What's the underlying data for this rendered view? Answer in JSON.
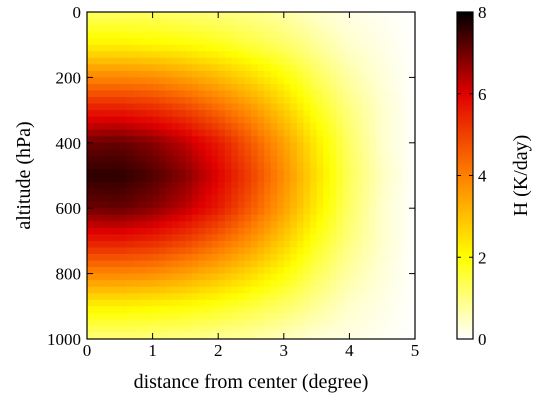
{
  "chart_data": {
    "type": "heatmap",
    "title": "",
    "xlabel": "distance from center (degree)",
    "ylabel": "altitude (hPa)",
    "xlim": [
      0,
      5
    ],
    "ylim": [
      1000,
      0
    ],
    "y_inverted": true,
    "xticks": [
      "0",
      "1",
      "2",
      "3",
      "4",
      "5"
    ],
    "yticks": [
      "0",
      "200",
      "400",
      "600",
      "800",
      "1000"
    ],
    "colorbar": {
      "label": "H (K/day)",
      "range": [
        0,
        8
      ],
      "ticks": [
        "0",
        "2",
        "4",
        "6",
        "8"
      ],
      "colormap": "hot_r",
      "colors": [
        "#ffffff",
        "#ffff00",
        "#ff8000",
        "#e00000",
        "#000000"
      ]
    },
    "field": {
      "x_distance": [
        0,
        0.5,
        1,
        1.5,
        2,
        2.5,
        3,
        3.5,
        4,
        4.5,
        5
      ],
      "y_altitude": [
        0,
        100,
        200,
        300,
        400,
        500,
        600,
        700,
        800,
        900,
        1000
      ],
      "values": [
        [
          1.2,
          1.2,
          1.2,
          1.1,
          1.0,
          0.9,
          0.7,
          0.4,
          0.2,
          0.1,
          0.0
        ],
        [
          2.2,
          2.2,
          2.1,
          2.0,
          1.8,
          1.5,
          1.2,
          0.8,
          0.4,
          0.2,
          0.0
        ],
        [
          3.9,
          3.9,
          3.8,
          3.5,
          3.1,
          2.6,
          2.0,
          1.3,
          0.7,
          0.3,
          0.0
        ],
        [
          5.6,
          5.6,
          5.4,
          5.0,
          4.4,
          3.7,
          2.8,
          1.8,
          1.0,
          0.4,
          0.0
        ],
        [
          7.0,
          7.1,
          6.8,
          6.3,
          5.6,
          4.6,
          3.5,
          2.3,
          1.2,
          0.4,
          0.0
        ],
        [
          7.6,
          7.6,
          7.3,
          6.8,
          6.0,
          5.0,
          3.8,
          2.5,
          1.3,
          0.5,
          0.0
        ],
        [
          7.0,
          7.1,
          6.8,
          6.3,
          5.6,
          4.6,
          3.5,
          2.3,
          1.2,
          0.4,
          0.0
        ],
        [
          5.6,
          5.6,
          5.4,
          5.0,
          4.4,
          3.7,
          2.8,
          1.8,
          1.0,
          0.4,
          0.0
        ],
        [
          3.9,
          3.9,
          3.8,
          3.5,
          3.1,
          2.6,
          2.0,
          1.3,
          0.7,
          0.3,
          0.0
        ],
        [
          2.2,
          2.2,
          2.1,
          2.0,
          1.8,
          1.5,
          1.2,
          0.8,
          0.4,
          0.2,
          0.0
        ],
        [
          1.0,
          1.0,
          1.0,
          0.9,
          0.8,
          0.7,
          0.5,
          0.3,
          0.2,
          0.1,
          0.0
        ]
      ]
    }
  }
}
